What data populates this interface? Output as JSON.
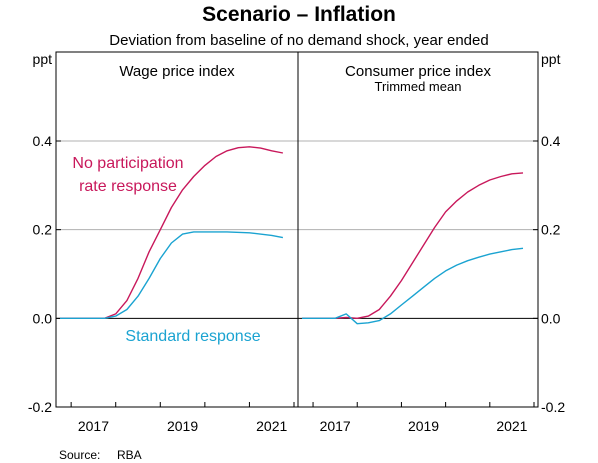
{
  "title": "Scenario – Inflation",
  "subtitle": "Deviation from baseline of no demand shock, year ended",
  "source_label": "Source:",
  "source_value": "RBA",
  "colors": {
    "no_participation": "#c8185b",
    "standard": "#1aa3d1",
    "gridline": "#b0b0b0",
    "axis": "#000000"
  },
  "chart_data": [
    {
      "type": "line",
      "panel_title": "Wage price index",
      "panel_subtitle": "",
      "ylabel": "ppt",
      "ylim": [
        -0.2,
        0.4
      ],
      "yticks": [
        -0.2,
        0.0,
        0.2,
        0.4
      ],
      "ytick_labels": [
        "-0.2",
        "0.0",
        "0.2",
        "0.4"
      ],
      "xlim": [
        2016.75,
        2022.0
      ],
      "xticks": [
        2017,
        2019,
        2021
      ],
      "xtick_labels": [
        "2017",
        "2019",
        "2021"
      ],
      "grid": true,
      "series": [
        {
          "name": "No participation rate response",
          "color_key": "no_participation",
          "x": [
            2016.75,
            2017.75,
            2018.0,
            2018.25,
            2018.5,
            2018.75,
            2019.0,
            2019.25,
            2019.5,
            2019.75,
            2020.0,
            2020.25,
            2020.5,
            2020.75,
            2021.0,
            2021.25,
            2021.5,
            2021.75
          ],
          "y": [
            0.0,
            0.0,
            0.01,
            0.04,
            0.09,
            0.15,
            0.2,
            0.25,
            0.29,
            0.32,
            0.345,
            0.365,
            0.378,
            0.385,
            0.387,
            0.384,
            0.378,
            0.373
          ]
        },
        {
          "name": "Standard response",
          "color_key": "standard",
          "x": [
            2016.75,
            2017.75,
            2018.0,
            2018.25,
            2018.5,
            2018.75,
            2019.0,
            2019.25,
            2019.5,
            2019.75,
            2020.0,
            2020.5,
            2021.0,
            2021.5,
            2021.75
          ],
          "y": [
            0.0,
            0.0,
            0.005,
            0.02,
            0.05,
            0.09,
            0.135,
            0.17,
            0.19,
            0.195,
            0.195,
            0.195,
            0.193,
            0.187,
            0.182
          ]
        }
      ],
      "annotations": [
        {
          "series": "No participation rate response",
          "lines": [
            "No participation",
            "rate response"
          ]
        },
        {
          "series": "Standard response",
          "lines": [
            "Standard response"
          ]
        }
      ]
    },
    {
      "type": "line",
      "panel_title": "Consumer price index",
      "panel_subtitle": "Trimmed mean",
      "ylabel": "ppt",
      "ylim": [
        -0.2,
        0.4
      ],
      "yticks": [
        -0.2,
        0.0,
        0.2,
        0.4
      ],
      "ytick_labels": [
        "-0.2",
        "0.0",
        "0.2",
        "0.4"
      ],
      "xlim": [
        2016.75,
        2022.0
      ],
      "xticks": [
        2017,
        2019,
        2021
      ],
      "xtick_labels": [
        "2017",
        "2019",
        "2021"
      ],
      "grid": true,
      "series": [
        {
          "name": "No participation rate response",
          "color_key": "no_participation",
          "x": [
            2016.75,
            2017.5,
            2017.75,
            2018.0,
            2018.25,
            2018.5,
            2018.75,
            2019.0,
            2019.25,
            2019.5,
            2019.75,
            2020.0,
            2020.25,
            2020.5,
            2020.75,
            2021.0,
            2021.25,
            2021.5,
            2021.75
          ],
          "y": [
            0.0,
            0.0,
            0.002,
            0.0,
            0.005,
            0.02,
            0.05,
            0.085,
            0.125,
            0.165,
            0.205,
            0.24,
            0.265,
            0.285,
            0.3,
            0.312,
            0.32,
            0.326,
            0.328
          ]
        },
        {
          "name": "Standard response",
          "color_key": "standard",
          "x": [
            2016.75,
            2017.5,
            2017.75,
            2018.0,
            2018.25,
            2018.5,
            2018.75,
            2019.0,
            2019.25,
            2019.5,
            2019.75,
            2020.0,
            2020.25,
            2020.5,
            2020.75,
            2021.0,
            2021.25,
            2021.5,
            2021.75
          ],
          "y": [
            0.0,
            0.0,
            0.01,
            -0.012,
            -0.01,
            -0.005,
            0.01,
            0.03,
            0.05,
            0.07,
            0.09,
            0.107,
            0.12,
            0.13,
            0.138,
            0.145,
            0.15,
            0.155,
            0.158
          ]
        }
      ],
      "annotations": []
    }
  ]
}
